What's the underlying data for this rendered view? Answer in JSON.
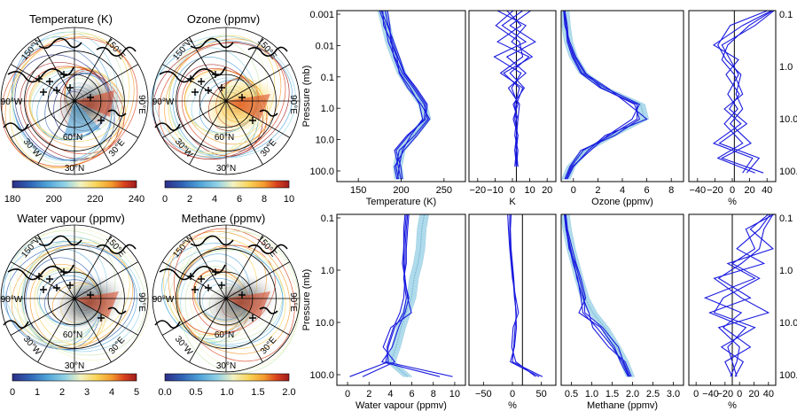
{
  "maps": [
    {
      "title": "Temperature (K)",
      "colorbar_ticks": [
        "180",
        "200",
        "220",
        "240"
      ],
      "cmin": 180,
      "cmax": 240
    },
    {
      "title": "Ozone (ppmv)",
      "colorbar_ticks": [
        "0",
        "2",
        "4",
        "6",
        "8",
        "10"
      ],
      "cmin": 0,
      "cmax": 10
    },
    {
      "title": "Water vapour (ppmv)",
      "colorbar_ticks": [
        "0",
        "1",
        "2",
        "3",
        "4",
        "5"
      ],
      "cmin": 0,
      "cmax": 5
    },
    {
      "title": "Methane (ppmv)",
      "colorbar_ticks": [
        "0.0",
        "0.5",
        "1.0",
        "1.5",
        "2.0"
      ],
      "cmin": 0,
      "cmax": 2
    }
  ],
  "map_labels": {
    "lon_left": "90°W",
    "lon_right": "90°E",
    "lat_low": "30°N",
    "lat_mid": "60°N",
    "lon_ul": "150°W",
    "lon_ur": "150°E",
    "lon_ll": "30°W",
    "lon_lr": "30°E"
  },
  "colors": {
    "colormap": [
      "#2c2e86",
      "#2f63b5",
      "#4fa3d8",
      "#8fd1e6",
      "#f3f3c2",
      "#f9d357",
      "#f39a2c",
      "#d9421f",
      "#9e1b1b"
    ],
    "profile_line": "#1a1adf",
    "profile_band": "#a8d8ea"
  },
  "chart_data": [
    {
      "type": "line",
      "panel": "temperature-profile",
      "xlabel": "Temperature (K)",
      "ylabel": "Pressure (mb)",
      "xlim": [
        130,
        295
      ],
      "ylim_log": [
        0.001,
        300
      ],
      "xticks": [
        "150",
        "200",
        "250"
      ],
      "yticks": [
        "0.001",
        "0.01",
        "0.1",
        "1.0",
        "10.0",
        "100.0"
      ],
      "y": [
        0.001,
        0.003,
        0.01,
        0.03,
        0.1,
        0.3,
        1,
        3,
        10,
        30,
        100,
        250
      ],
      "series": [
        {
          "role": "reference",
          "values": [
            188,
            193,
            198,
            205,
            213,
            225,
            240,
            245,
            228,
            212,
            208,
            210
          ]
        },
        {
          "role": "profile",
          "values": [
            185,
            192,
            196,
            204,
            214,
            228,
            242,
            247,
            230,
            210,
            206,
            209
          ]
        },
        {
          "role": "profile",
          "values": [
            192,
            196,
            201,
            208,
            216,
            230,
            244,
            242,
            222,
            206,
            212,
            214
          ]
        },
        {
          "role": "profile",
          "values": [
            189,
            190,
            200,
            203,
            211,
            224,
            236,
            240,
            225,
            214,
            210,
            208
          ]
        },
        {
          "role": "profile",
          "values": [
            195,
            198,
            199,
            207,
            210,
            221,
            238,
            249,
            233,
            216,
            204,
            207
          ]
        },
        {
          "role": "profile",
          "values": [
            187,
            195,
            203,
            210,
            217,
            232,
            246,
            244,
            220,
            204,
            209,
            212
          ]
        }
      ]
    },
    {
      "type": "line",
      "panel": "temperature-difference",
      "xlabel": "K",
      "xlim": [
        -30,
        25
      ],
      "ylim_log": [
        0.001,
        300
      ],
      "xticks": [
        "−20",
        "−10",
        "0",
        "10",
        "20"
      ],
      "y": [
        0.001,
        0.003,
        0.01,
        0.03,
        0.1,
        0.3,
        1,
        3,
        10,
        30,
        100
      ],
      "series": [
        {
          "values": [
            -6,
            3,
            -12,
            8,
            -4,
            5,
            -2,
            1,
            0,
            -1,
            0
          ]
        },
        {
          "values": [
            4,
            -9,
            6,
            -14,
            3,
            -3,
            1,
            -2,
            1,
            0,
            1
          ]
        },
        {
          "values": [
            -12,
            6,
            -3,
            10,
            -8,
            2,
            -1,
            0,
            -1,
            1,
            0
          ]
        },
        {
          "values": [
            9,
            -4,
            12,
            -6,
            6,
            -5,
            2,
            1,
            0,
            0,
            -1
          ]
        },
        {
          "values": [
            -2,
            -13,
            2,
            4,
            -10,
            4,
            0,
            -1,
            1,
            -1,
            1
          ]
        }
      ]
    },
    {
      "type": "line",
      "panel": "ozone-profile",
      "xlabel": "Ozone (ppmv)",
      "xlim": [
        0,
        10
      ],
      "ylim_log": [
        0.001,
        300
      ],
      "xticks": [
        "0",
        "2",
        "4",
        "6",
        "8"
      ],
      "y": [
        0.001,
        0.003,
        0.01,
        0.03,
        0.1,
        0.3,
        1,
        3,
        10,
        30,
        100,
        250
      ],
      "series": [
        {
          "role": "reference",
          "values": [
            0.3,
            0.4,
            0.6,
            1.0,
            1.8,
            3.5,
            6.5,
            6.8,
            4.2,
            2.0,
            0.8,
            0.4
          ]
        },
        {
          "role": "profile",
          "values": [
            0.2,
            0.4,
            0.5,
            0.9,
            1.6,
            3.2,
            6.2,
            6.2,
            4.0,
            1.8,
            0.8,
            0.4
          ]
        },
        {
          "role": "profile",
          "values": [
            0.3,
            0.5,
            0.6,
            1.1,
            1.9,
            3.8,
            5.5,
            7.0,
            3.6,
            2.2,
            1.0,
            0.5
          ]
        },
        {
          "role": "profile",
          "values": [
            0.2,
            0.3,
            0.7,
            1.2,
            2.0,
            3.3,
            6.0,
            6.4,
            4.4,
            1.6,
            0.7,
            0.3
          ]
        },
        {
          "role": "profile",
          "values": [
            0.3,
            0.4,
            0.6,
            1.0,
            1.7,
            3.6,
            6.4,
            5.8,
            3.8,
            2.4,
            0.9,
            0.4
          ]
        }
      ]
    },
    {
      "type": "line",
      "panel": "ozone-difference",
      "xlabel": "%",
      "xlim": [
        -55,
        50
      ],
      "ylim_log": [
        0.1,
        300
      ],
      "xticks": [
        "−40",
        "−20",
        "0",
        "20",
        "40"
      ],
      "yticks_right": [
        "0.1",
        "1.0",
        "10.0",
        "100."
      ],
      "y": [
        0.1,
        0.2,
        0.5,
        1,
        2,
        5,
        10,
        20,
        50,
        100,
        200
      ],
      "series": [
        {
          "values": [
            48,
            25,
            -15,
            -5,
            5,
            -8,
            4,
            -12,
            10,
            -20,
            25
          ]
        },
        {
          "values": [
            45,
            10,
            -25,
            5,
            -10,
            6,
            -6,
            15,
            -18,
            30,
            15
          ]
        },
        {
          "values": [
            40,
            -5,
            -20,
            -10,
            8,
            2,
            10,
            -5,
            20,
            -15,
            35
          ]
        },
        {
          "values": [
            46,
            18,
            -8,
            -15,
            0,
            10,
            -12,
            8,
            -25,
            22,
            10
          ]
        }
      ]
    },
    {
      "type": "line",
      "panel": "water-vapour-profile",
      "xlabel": "Water vapour (ppmv)",
      "ylabel": "Pressure (mb)",
      "xlim": [
        0,
        10
      ],
      "ylim_log": [
        0.1,
        300
      ],
      "xticks": [
        "0",
        "2",
        "4",
        "6",
        "8",
        "10"
      ],
      "yticks": [
        "0.1",
        "1.0",
        "10.0",
        "100.0"
      ],
      "y": [
        0.1,
        0.2,
        0.5,
        1,
        2,
        5,
        10,
        20,
        50,
        100,
        200
      ],
      "series": [
        {
          "role": "reference",
          "values": [
            6.8,
            6.6,
            6.5,
            6.3,
            6.0,
            5.8,
            5.4,
            5.0,
            4.6,
            4.2,
            5.5
          ]
        },
        {
          "role": "profile",
          "values": [
            5.5,
            5.4,
            5.3,
            5.3,
            5.2,
            5.4,
            5.2,
            4.5,
            4.0,
            3.8,
            9.0
          ]
        },
        {
          "role": "profile",
          "values": [
            5.3,
            5.2,
            5.2,
            5.1,
            5.3,
            5.5,
            5.8,
            4.2,
            3.6,
            4.5,
            2.0
          ]
        },
        {
          "role": "profile",
          "values": [
            5.6,
            5.5,
            5.4,
            5.4,
            5.2,
            5.6,
            5.3,
            4.8,
            4.3,
            3.5,
            8.0
          ]
        },
        {
          "role": "profile",
          "values": [
            5.4,
            5.3,
            5.2,
            5.2,
            5.3,
            5.2,
            4.9,
            4.4,
            3.9,
            4.0,
            1.0
          ]
        }
      ]
    },
    {
      "type": "line",
      "panel": "water-vapour-difference",
      "xlabel": "%",
      "xlim": [
        -80,
        50
      ],
      "ylim_log": [
        0.1,
        300
      ],
      "xticks": [
        "−50",
        "0",
        "50"
      ],
      "y": [
        0.1,
        0.2,
        0.5,
        1,
        2,
        5,
        10,
        20,
        50,
        100,
        200
      ],
      "series": [
        {
          "values": [
            -19,
            -19,
            -18,
            -16,
            -14,
            -12,
            -9,
            -11,
            -13,
            -15,
            30
          ]
        },
        {
          "values": [
            -22,
            -21,
            -19,
            -17,
            -15,
            -10,
            -6,
            -14,
            -16,
            -10,
            20
          ]
        },
        {
          "values": [
            -17,
            -18,
            -17,
            -15,
            -13,
            -11,
            -10,
            -9,
            -12,
            -18,
            25
          ]
        }
      ]
    },
    {
      "type": "line",
      "panel": "methane-profile",
      "xlabel": "Methane (ppmv)",
      "xlim": [
        0,
        3.1
      ],
      "ylim_log": [
        0.1,
        300
      ],
      "xticks": [
        "0.5",
        "1.0",
        "1.5",
        "2.0",
        "2.5",
        "3.0"
      ],
      "y": [
        0.1,
        0.2,
        0.5,
        1,
        2,
        5,
        10,
        20,
        50,
        100,
        200
      ],
      "series": [
        {
          "role": "reference",
          "values": [
            0.1,
            0.15,
            0.25,
            0.35,
            0.45,
            0.6,
            0.8,
            1.1,
            1.4,
            1.6,
            1.75
          ]
        },
        {
          "role": "profile",
          "values": [
            0.08,
            0.12,
            0.22,
            0.3,
            0.42,
            0.5,
            0.55,
            0.9,
            1.3,
            1.55,
            1.72
          ]
        },
        {
          "role": "profile",
          "values": [
            0.12,
            0.16,
            0.28,
            0.38,
            0.5,
            0.62,
            0.45,
            1.0,
            1.35,
            1.5,
            1.7
          ]
        },
        {
          "role": "profile",
          "values": [
            0.1,
            0.14,
            0.24,
            0.33,
            0.4,
            0.55,
            0.7,
            0.8,
            1.2,
            1.62,
            1.78
          ]
        },
        {
          "role": "profile",
          "values": [
            0.09,
            0.13,
            0.2,
            0.36,
            0.46,
            0.58,
            0.6,
            1.05,
            1.45,
            1.58,
            1.74
          ]
        }
      ]
    },
    {
      "type": "line",
      "panel": "methane-difference",
      "xlabel": "%",
      "xlim": [
        -48,
        48
      ],
      "ylim_log": [
        0.1,
        300
      ],
      "xticks": [
        "0",
        "−40",
        "−20",
        "0",
        "20",
        "40"
      ],
      "yticks_right": [
        "0.1",
        "1.0",
        "10.0",
        "100."
      ],
      "y": [
        0.1,
        0.2,
        0.5,
        1,
        2,
        5,
        10,
        20,
        50,
        100,
        200
      ],
      "series": [
        {
          "values": [
            45,
            35,
            30,
            10,
            -15,
            20,
            -25,
            15,
            -5,
            0,
            5
          ]
        },
        {
          "values": [
            40,
            20,
            45,
            -5,
            25,
            -30,
            10,
            -10,
            20,
            -8,
            0
          ]
        },
        {
          "values": [
            42,
            30,
            5,
            35,
            -20,
            10,
            40,
            -15,
            8,
            5,
            -2
          ]
        },
        {
          "values": [
            46,
            15,
            25,
            0,
            30,
            -10,
            -20,
            25,
            -12,
            12,
            3
          ]
        }
      ]
    }
  ]
}
